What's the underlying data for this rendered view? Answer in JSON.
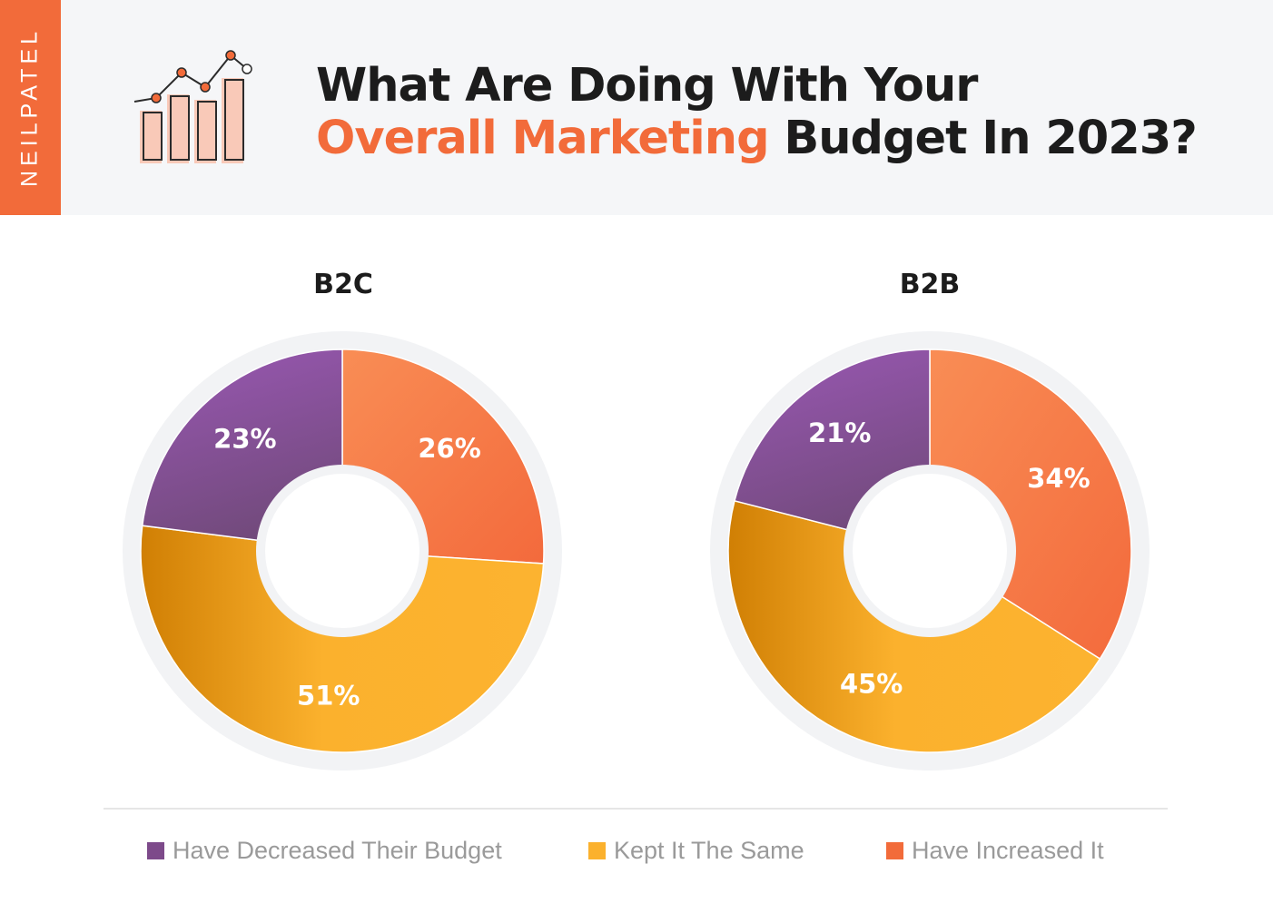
{
  "brand": "NEILPATEL",
  "title": {
    "line1": "What Are Doing With Your",
    "accent": "Overall Marketing",
    "rest": " Budget In 2023?"
  },
  "colors": {
    "brand_orange": "#f26b3a",
    "decreased": "#8e4f9d",
    "same": "#fbb12d",
    "increased": "#f57b45"
  },
  "icons": [
    "bar-chart-growth-icon"
  ],
  "legend": [
    {
      "label": "Have Decreased Their Budget",
      "color": "#7d4a8a"
    },
    {
      "label": "Kept It The Same",
      "color": "#fbb12d"
    },
    {
      "label": "Have Increased It",
      "color": "#f26b3a"
    }
  ],
  "chart_data": [
    {
      "type": "pie",
      "donut": true,
      "title": "B2C",
      "slices": [
        {
          "label": "Have Increased It",
          "value": 26,
          "display": "26%"
        },
        {
          "label": "Kept It The Same",
          "value": 51,
          "display": "51%"
        },
        {
          "label": "Have Decreased Their Budget",
          "value": 23,
          "display": "23%"
        }
      ]
    },
    {
      "type": "pie",
      "donut": true,
      "title": "B2B",
      "slices": [
        {
          "label": "Have Increased It",
          "value": 34,
          "display": "34%"
        },
        {
          "label": "Kept It The Same",
          "value": 45,
          "display": "45%"
        },
        {
          "label": "Have Decreased Their Budget",
          "value": 21,
          "display": "21%"
        }
      ]
    }
  ]
}
